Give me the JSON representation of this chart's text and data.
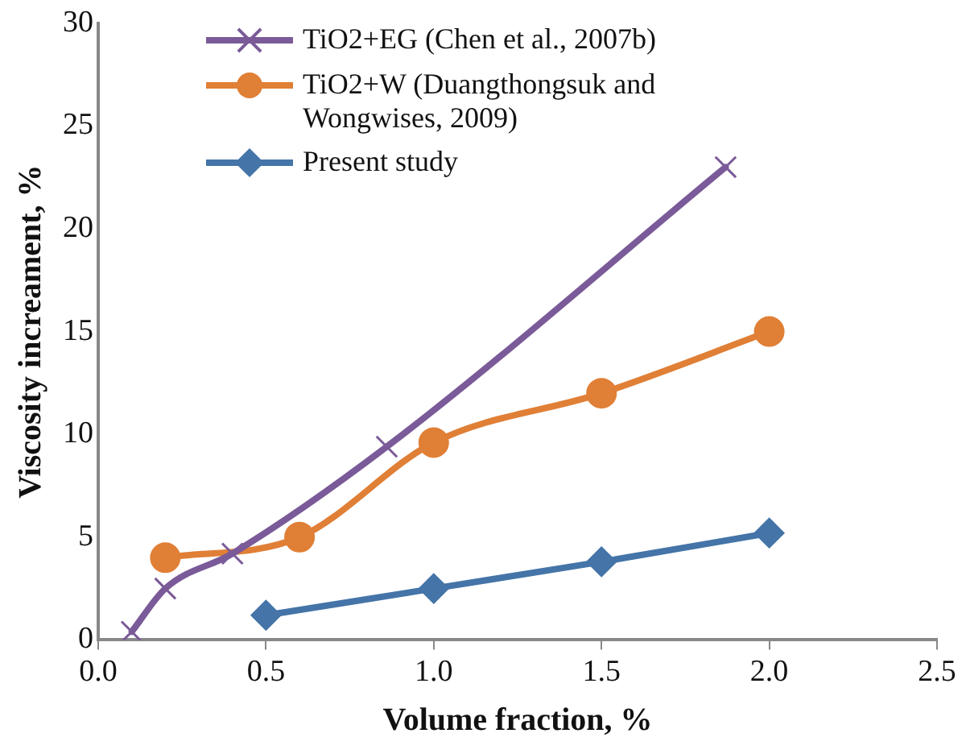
{
  "chart_data": {
    "type": "line",
    "xlabel": "Volume fraction, %",
    "ylabel": "Viscosity increament, %",
    "xlim": [
      0,
      2.5
    ],
    "xticks": [
      {
        "value": 0,
        "label": "0.0"
      },
      {
        "value": 0.5,
        "label": "0.5"
      },
      {
        "value": 1,
        "label": "1.0"
      },
      {
        "value": 1.5,
        "label": "1.5"
      },
      {
        "value": 2,
        "label": "2.0"
      },
      {
        "value": 2.5,
        "label": "2.5"
      }
    ],
    "ylim": [
      0,
      30
    ],
    "yticks": [
      0,
      5,
      10,
      15,
      20,
      25,
      30
    ],
    "grid": false,
    "legend": "top left",
    "series": [
      {
        "name": "TiO2+EG (Chen et al., 2007b)",
        "color": "#7a5a98",
        "marker": "cross",
        "x": [
          0.1,
          0.2,
          0.4,
          0.86,
          1.87
        ],
        "values": [
          0.4,
          2.5,
          4.2,
          9.4,
          23
        ]
      },
      {
        "name": "TiO2+W (Duangthongsuk and Wongwises, 2009)",
        "color": "#e07f36",
        "marker": "circle",
        "x": [
          0.2,
          0.6,
          1.0,
          1.5,
          2.0
        ],
        "values": [
          4,
          5,
          9.6,
          12,
          15
        ]
      },
      {
        "name": "Present study",
        "color": "#4474a8",
        "marker": "diamond",
        "x": [
          0.5,
          1.0,
          1.5,
          2.0
        ],
        "values": [
          1.2,
          2.5,
          3.8,
          5.2
        ]
      }
    ]
  }
}
